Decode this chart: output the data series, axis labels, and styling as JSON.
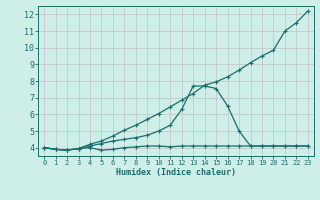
{
  "xlabel": "Humidex (Indice chaleur)",
  "bg_color": "#ceeee8",
  "grid_color": "#c8c0c8",
  "line_color": "#1a6e6e",
  "xlim": [
    -0.5,
    23.5
  ],
  "ylim": [
    3.5,
    12.5
  ],
  "xticks": [
    0,
    1,
    2,
    3,
    4,
    5,
    6,
    7,
    8,
    9,
    10,
    11,
    12,
    13,
    14,
    15,
    16,
    17,
    18,
    19,
    20,
    21,
    22,
    23
  ],
  "yticks": [
    4,
    5,
    6,
    7,
    8,
    9,
    10,
    11,
    12
  ],
  "line1_x": [
    0,
    1,
    2,
    3,
    4,
    5,
    6,
    7,
    8,
    9,
    10,
    11,
    12,
    13,
    14,
    15,
    16,
    17,
    18,
    19,
    20,
    21,
    22,
    23
  ],
  "line1_y": [
    4.0,
    3.9,
    3.85,
    3.95,
    4.0,
    3.85,
    3.9,
    4.0,
    4.05,
    4.1,
    4.1,
    4.05,
    4.1,
    4.1,
    4.1,
    4.1,
    4.1,
    4.1,
    4.1,
    4.1,
    4.1,
    4.1,
    4.1,
    4.1
  ],
  "line2_x": [
    0,
    1,
    2,
    3,
    4,
    5,
    6,
    7,
    8,
    9,
    10,
    11,
    12,
    13,
    14,
    15,
    16,
    17,
    18,
    19,
    20,
    21,
    22,
    23
  ],
  "line2_y": [
    4.0,
    3.9,
    3.85,
    3.95,
    4.1,
    4.25,
    4.4,
    4.5,
    4.6,
    4.75,
    5.0,
    5.35,
    6.3,
    7.7,
    7.7,
    7.55,
    6.5,
    5.0,
    4.1,
    4.1,
    4.1,
    4.1,
    4.1,
    4.1
  ],
  "line3_x": [
    0,
    1,
    2,
    3,
    4,
    5,
    6,
    7,
    8,
    9,
    10,
    11,
    12,
    13,
    14,
    15,
    16,
    17,
    18,
    19,
    20,
    21,
    22,
    23
  ],
  "line3_y": [
    4.0,
    3.9,
    3.85,
    3.95,
    4.2,
    4.4,
    4.7,
    5.05,
    5.35,
    5.7,
    6.05,
    6.45,
    6.85,
    7.25,
    7.75,
    7.95,
    8.25,
    8.65,
    9.1,
    9.5,
    9.85,
    11.0,
    11.5,
    12.2
  ]
}
